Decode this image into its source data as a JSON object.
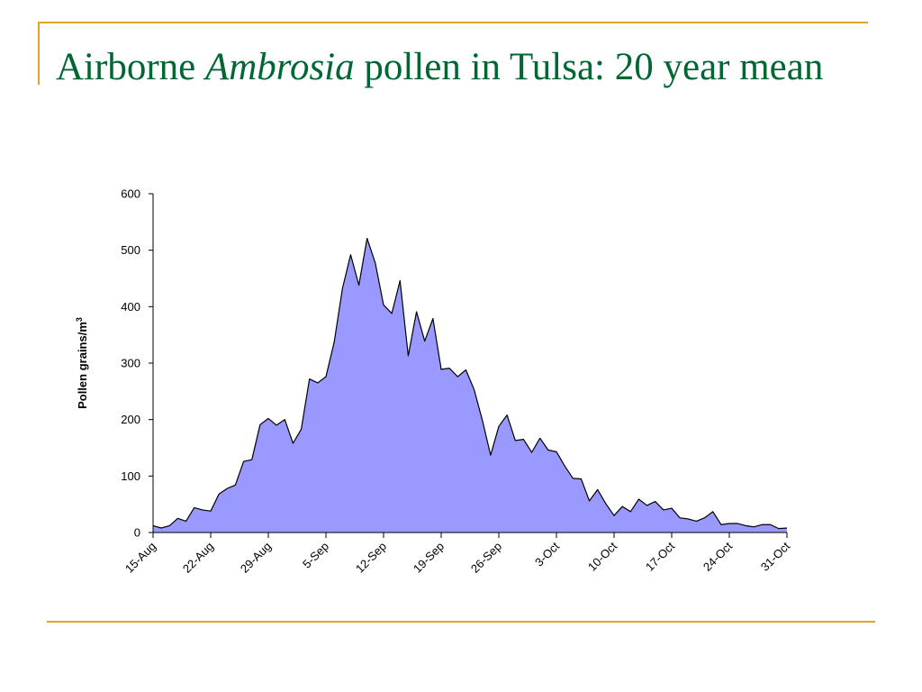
{
  "slide": {
    "title_prefix": "Airborne ",
    "title_italic": "Ambrosia",
    "title_suffix": " pollen in Tulsa: 20 year mean",
    "accent_color": "#e0a426",
    "title_color": "#006633"
  },
  "chart_data": {
    "type": "area",
    "title": "",
    "xlabel": "",
    "ylabel": "Pollen grains/m",
    "ylabel_superscript": "3",
    "ylim": [
      0,
      600
    ],
    "yticks": [
      0,
      100,
      200,
      300,
      400,
      500,
      600
    ],
    "xticks": [
      "15-Aug",
      "22-Aug",
      "29-Aug",
      "5-Sep",
      "12-Sep",
      "19-Sep",
      "26-Sep",
      "3-Oct",
      "10-Oct",
      "17-Oct",
      "24-Oct",
      "31-Oct"
    ],
    "x_start": "15-Aug",
    "x_end": "2-Nov",
    "fill_color": "#9999ff",
    "line_color": "#000000",
    "grid": false,
    "legend": "none",
    "series": [
      {
        "values": [
          12,
          8,
          12,
          25,
          20,
          44,
          40,
          38,
          68,
          78,
          84,
          126,
          129,
          191,
          202,
          190,
          200,
          158,
          183,
          272,
          265,
          276,
          337,
          432,
          492,
          438,
          521,
          477,
          403,
          388,
          446,
          313,
          391,
          339,
          379,
          289,
          291,
          276,
          288,
          253,
          199,
          137,
          188,
          208,
          163,
          165,
          142,
          167,
          146,
          143,
          118,
          96,
          95,
          56,
          76,
          51,
          30,
          46,
          37,
          59,
          48,
          55,
          40,
          43,
          26,
          24,
          20,
          26,
          37,
          14,
          16,
          16,
          12,
          10,
          14,
          14,
          7,
          8
        ]
      }
    ]
  }
}
